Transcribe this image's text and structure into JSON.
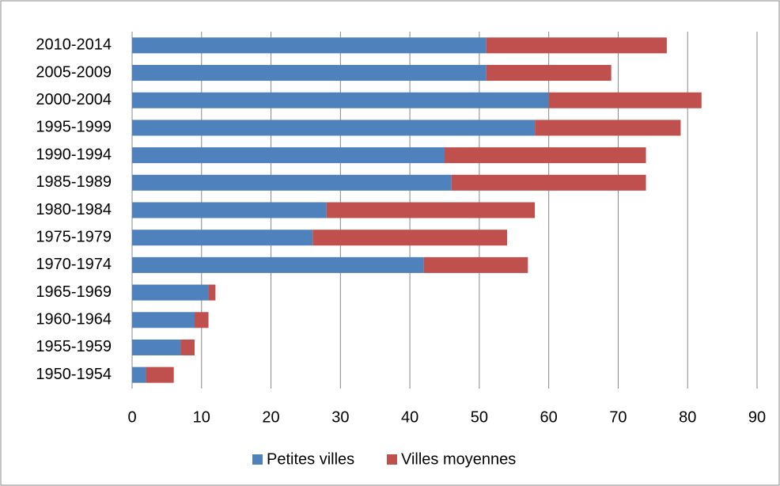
{
  "chart_data": {
    "type": "bar",
    "orientation": "horizontal",
    "stacked": true,
    "categories": [
      "2010-2014",
      "2005-2009",
      "2000-2004",
      "1995-1999",
      "1990-1994",
      "1985-1989",
      "1980-1984",
      "1975-1979",
      "1970-1974",
      "1965-1969",
      "1960-1964",
      "1955-1959",
      "1950-1954"
    ],
    "series": [
      {
        "name": "Petites villes",
        "color": "#4f81bd",
        "values": [
          51,
          51,
          60,
          58,
          45,
          46,
          28,
          26,
          42,
          11,
          9,
          7,
          2
        ]
      },
      {
        "name": "Villes moyennes",
        "color": "#c0504d",
        "values": [
          26,
          18,
          22,
          21,
          29,
          28,
          30,
          28,
          15,
          1,
          2,
          2,
          4
        ]
      }
    ],
    "xlim": [
      0,
      90
    ],
    "xticks": [
      0,
      10,
      20,
      30,
      40,
      50,
      60,
      70,
      80,
      90
    ],
    "grid": true,
    "legend": "bottom"
  }
}
